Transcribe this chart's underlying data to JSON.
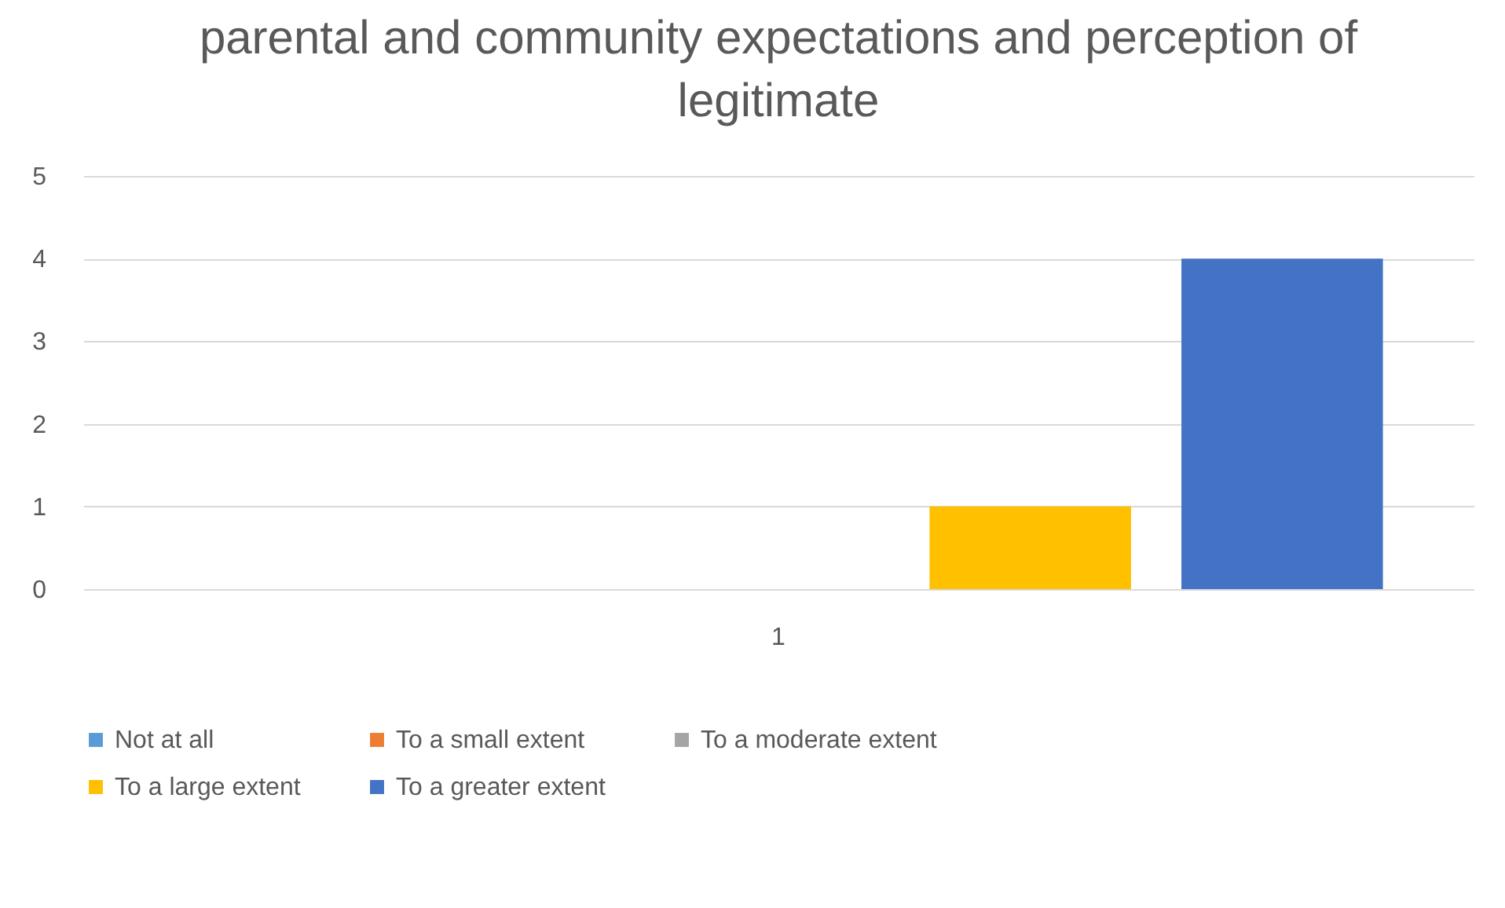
{
  "chart_data": {
    "type": "bar",
    "title": "parental and community expectations and perception of legitimate",
    "categories": [
      "1"
    ],
    "series": [
      {
        "name": "Not at all",
        "color": "#5b9bd5",
        "values": [
          0
        ]
      },
      {
        "name": "To a small extent",
        "color": "#ed7d31",
        "values": [
          0
        ]
      },
      {
        "name": "To a moderate extent",
        "color": "#a5a5a5",
        "values": [
          0
        ]
      },
      {
        "name": "To a large extent",
        "color": "#ffc000",
        "values": [
          1
        ]
      },
      {
        "name": "To a greater extent",
        "color": "#4472c4",
        "values": [
          4
        ]
      }
    ],
    "ylim": [
      0,
      5
    ],
    "yticks": [
      0,
      1,
      2,
      3,
      4,
      5
    ],
    "grid": "y",
    "legend": "bottom"
  }
}
